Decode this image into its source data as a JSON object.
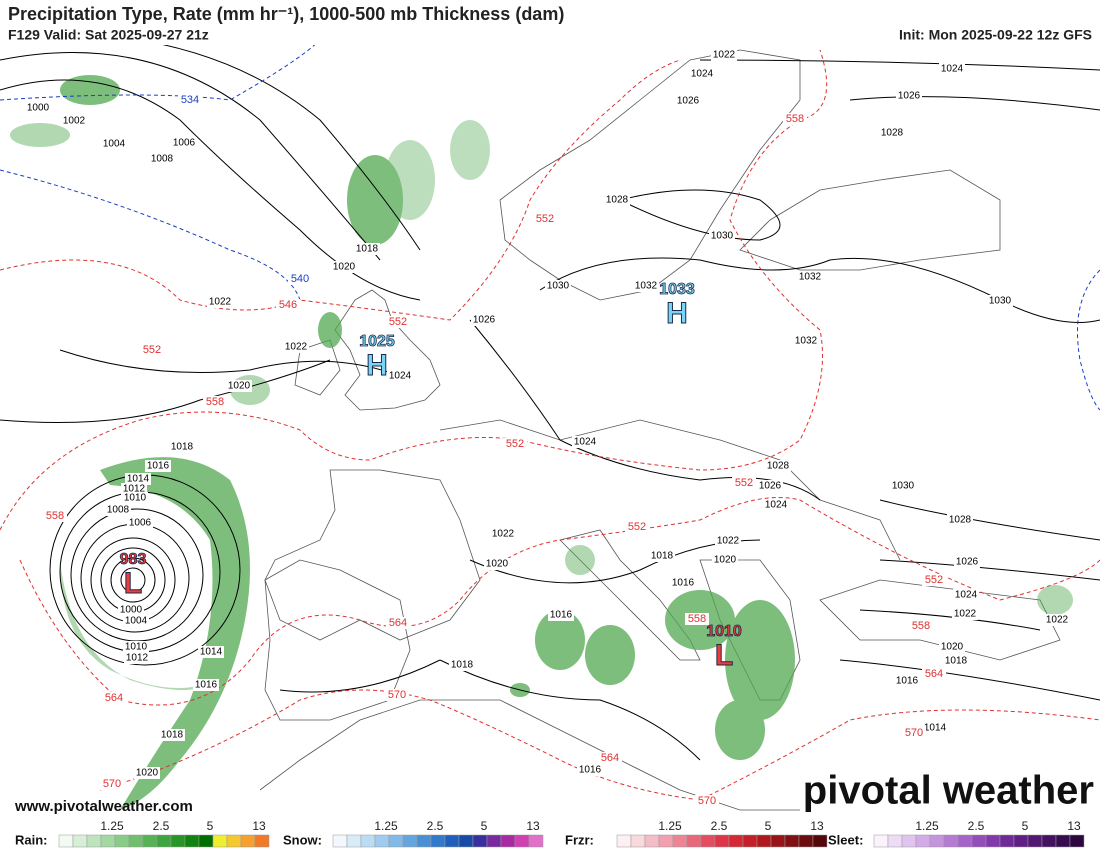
{
  "header": {
    "title": "Precipitation Type, Rate (mm hr⁻¹), 1000-500 mb Thickness (dam)",
    "valid": "F129 Valid: Sat 2025-09-27 21z",
    "init": "Init: Mon 2025-09-22 12z GFS"
  },
  "pressure_centers": [
    {
      "type": "H",
      "value": 1033
    },
    {
      "type": "H",
      "value": 1025
    },
    {
      "type": "L",
      "value": 983
    },
    {
      "type": "L",
      "value": 1010
    }
  ],
  "isobar_labels": [
    1000,
    1002,
    1004,
    1006,
    1008,
    1022,
    1024,
    1026,
    1024,
    1026,
    1028,
    1028,
    1030,
    1018,
    1020,
    1022,
    1030,
    1032,
    1032,
    1030,
    1026,
    1032,
    1022,
    1024,
    1020,
    1018,
    1016,
    1024,
    1028,
    1026,
    1030,
    1024,
    1028,
    1014,
    1012,
    1010,
    1008,
    1006,
    1022,
    1022,
    1018,
    1020,
    1020,
    1026,
    1016,
    1024,
    1016,
    1022,
    1022,
    1000,
    1004,
    1010,
    1012,
    1014,
    1020,
    1018,
    1016,
    1018,
    1016,
    1014,
    1018,
    1020,
    1016
  ],
  "thickness_labels": [
    {
      "value": 534,
      "color": "#1a3fc4"
    },
    {
      "value": 540,
      "color": "#1a3fc4"
    },
    {
      "value": 546,
      "color": "#e03030"
    },
    {
      "value": 552,
      "color": "#e03030"
    },
    {
      "value": 552,
      "color": "#e03030"
    },
    {
      "value": 558,
      "color": "#e03030"
    },
    {
      "value": 552,
      "color": "#e03030"
    },
    {
      "value": 558,
      "color": "#e03030"
    },
    {
      "value": 552,
      "color": "#e03030"
    },
    {
      "value": 552,
      "color": "#e03030"
    },
    {
      "value": 558,
      "color": "#e03030"
    },
    {
      "value": 552,
      "color": "#e03030"
    },
    {
      "value": 552,
      "color": "#e03030"
    },
    {
      "value": 558,
      "color": "#e03030"
    },
    {
      "value": 564,
      "color": "#e03030"
    },
    {
      "value": 558,
      "color": "#e03030"
    },
    {
      "value": 564,
      "color": "#e03030"
    },
    {
      "value": 570,
      "color": "#e03030"
    },
    {
      "value": 564,
      "color": "#e03030"
    },
    {
      "value": 570,
      "color": "#e03030"
    },
    {
      "value": 564,
      "color": "#e03030"
    },
    {
      "value": 570,
      "color": "#e03030"
    },
    {
      "value": 570,
      "color": "#e03030"
    }
  ],
  "footer": {
    "website": "www.pivotalweather.com",
    "logo": "pivotal weather"
  },
  "legend": [
    {
      "name": "Rain:",
      "ticks": [
        1.25,
        2.5,
        5,
        13
      ],
      "colors": [
        "#f2faf2",
        "#d6efd6",
        "#bde4bd",
        "#a3d8a3",
        "#89cc89",
        "#6fbf6f",
        "#55b255",
        "#3da53d",
        "#279527",
        "#118311",
        "#006e00",
        "#f0ee30",
        "#f6c830",
        "#f5a030",
        "#f07a28"
      ]
    },
    {
      "name": "Snow:",
      "ticks": [
        1.25,
        2.5,
        5,
        13
      ],
      "colors": [
        "#f2f8fd",
        "#d8ebf9",
        "#bcdcf4",
        "#9fcbee",
        "#82b9e7",
        "#65a5df",
        "#4a8fd6",
        "#3278cb",
        "#2060bc",
        "#184aa8",
        "#3a2f9e",
        "#7a2aa0",
        "#a82aa0",
        "#d040b0",
        "#e070c8"
      ]
    },
    {
      "name": "Frzr:",
      "ticks": [
        1.25,
        2.5,
        5,
        13
      ],
      "colors": [
        "#fdf0f2",
        "#f9d8de",
        "#f4bcc6",
        "#f0a0ae",
        "#ec8494",
        "#e8687a",
        "#e44c60",
        "#e03448",
        "#d42834",
        "#c41e28",
        "#b0181f",
        "#981418",
        "#801014",
        "#6a0c10",
        "#54080c"
      ]
    },
    {
      "name": "Sleet:",
      "ticks": [
        1.25,
        2.5,
        5,
        13
      ],
      "colors": [
        "#faf2fc",
        "#eedcf5",
        "#e0c4ee",
        "#d2ace6",
        "#c494dd",
        "#b47bd3",
        "#a464c8",
        "#944eba",
        "#823aab",
        "#702a98",
        "#601f85",
        "#521872",
        "#451260",
        "#380d4f",
        "#2c083e"
      ]
    }
  ]
}
